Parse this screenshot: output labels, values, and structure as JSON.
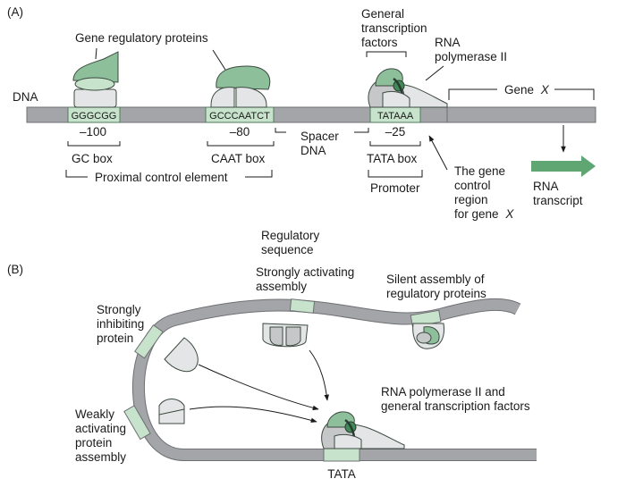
{
  "panel_a": {
    "label": "(A)",
    "dna_label": "DNA",
    "gene_regulatory_proteins": "Gene regulatory proteins",
    "general_tf_line1": "General",
    "general_tf_line2": "transcription",
    "general_tf_line3": "factors",
    "rna_pol_line1": "RNA",
    "rna_pol_line2": "polymerase II",
    "gene_label_prefix": "Gene",
    "gene_label_name": "X",
    "boxes": {
      "gc_seq": "GGGCGG",
      "caat_seq": "GCCCAATCT",
      "tata_seq": "TATAAA"
    },
    "positions": {
      "gc": "–100",
      "caat": "–80",
      "tata": "–25"
    },
    "gc_box": "GC box",
    "caat_box": "CAAT box",
    "tata_box": "TATA box",
    "spacer_line1": "Spacer",
    "spacer_line2": "DNA",
    "proximal_control": "Proximal control element",
    "promoter": "Promoter",
    "control_region_line1": "The gene",
    "control_region_line2": "control",
    "control_region_line3": "region",
    "control_region_line4_prefix": "for gene",
    "control_region_line4_name": "X",
    "rna_transcript_line1": "RNA",
    "rna_transcript_line2": "transcript"
  },
  "panel_b": {
    "label": "(B)",
    "regulatory_line1": "Regulatory",
    "regulatory_line2": "sequence",
    "strong_act_line1": "Strongly activating",
    "strong_act_line2": "assembly",
    "silent_line1": "Silent assembly of",
    "silent_line2": "regulatory proteins",
    "strong_inhib_line1": "Strongly",
    "strong_inhib_line2": "inhibiting",
    "strong_inhib_line3": "protein",
    "weak_act_line1": "Weakly",
    "weak_act_line2": "activating",
    "weak_act_line3": "protein",
    "weak_act_line4": "assembly",
    "rnapol_line1": "RNA polymerase II and",
    "rnapol_line2": "general transcription factors",
    "tata": "TATA"
  },
  "colors": {
    "dna_gray": "#a3a5a8",
    "dna_stroke": "#6e7073",
    "element_green": "#c7e3cc",
    "protein_green": "#8dbf9a",
    "dark_green": "#3f8a57",
    "light_gray": "#e4e5e6",
    "mid_gray": "#c6c7c9",
    "arrow_green": "#5fa673"
  }
}
